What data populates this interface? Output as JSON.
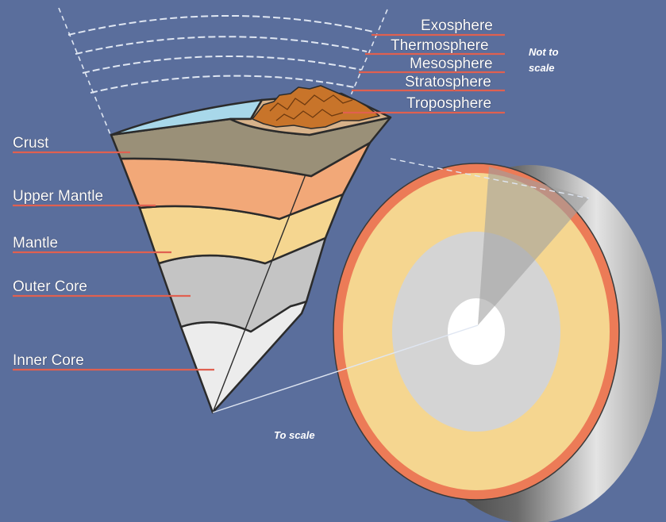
{
  "diagram": {
    "atmosphere_labels": {
      "exosphere": "Exosphere",
      "thermosphere": "Thermosphere",
      "mesosphere": "Mesosphere",
      "stratosphere": "Stratosphere",
      "troposphere": "Troposphere"
    },
    "earth_labels": {
      "crust": "Crust",
      "upper_mantle": "Upper Mantle",
      "mantle": "Mantle",
      "outer_core": "Outer Core",
      "inner_core": "Inner Core"
    },
    "notes": {
      "not_to_scale_line1": "Not to",
      "not_to_scale_line2": "scale",
      "to_scale": "To scale"
    },
    "colors": {
      "background": "#5a6e9c",
      "leader_line": "#e06050",
      "crust": "#9a9078",
      "upper_mantle": "#f2a878",
      "mantle": "#f5d690",
      "outer_core": "#c4c4c4",
      "inner_core": "#ececec",
      "ocean": "#a8d8ea",
      "mountains": "#c8742a"
    }
  }
}
